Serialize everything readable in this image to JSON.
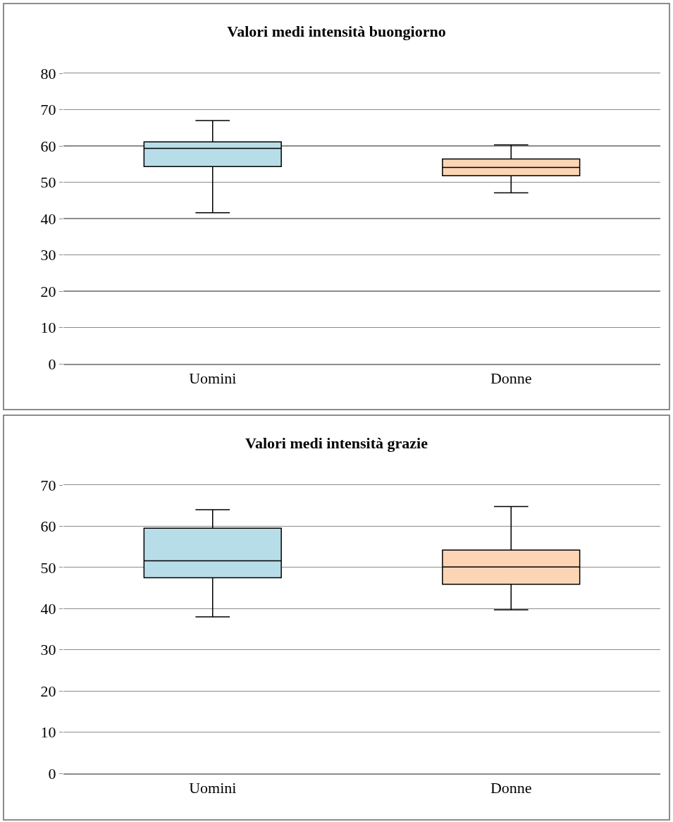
{
  "chart_data": [
    {
      "type": "box",
      "title": "Valori medi intensità buongiorno",
      "categories": [
        "Uomini",
        "Donne"
      ],
      "colors": [
        "#b7dde8",
        "#fcd5b5"
      ],
      "boxes": [
        {
          "low": 41.6,
          "q1": 54.3,
          "median": 59.3,
          "q3": 61.1,
          "high": 67
        },
        {
          "low": 47.1,
          "q1": 51.8,
          "median": 54.1,
          "q3": 56.4,
          "high": 60.3
        }
      ],
      "ylim": [
        0,
        80
      ],
      "yticks": [
        0,
        10,
        20,
        30,
        40,
        50,
        60,
        70,
        80
      ],
      "grid": "y"
    },
    {
      "type": "box",
      "title": "Valori medi intensità grazie",
      "categories": [
        "Uomini",
        "Donne"
      ],
      "colors": [
        "#b7dde8",
        "#fcd5b5"
      ],
      "boxes": [
        {
          "low": 38,
          "q1": 47.5,
          "median": 51.6,
          "q3": 59.5,
          "high": 64
        },
        {
          "low": 39.7,
          "q1": 45.9,
          "median": 50.1,
          "q3": 54.2,
          "high": 64.8
        }
      ],
      "ylim": [
        0,
        70
      ],
      "yticks": [
        0,
        10,
        20,
        30,
        40,
        50,
        60,
        70
      ],
      "grid": "y"
    }
  ]
}
